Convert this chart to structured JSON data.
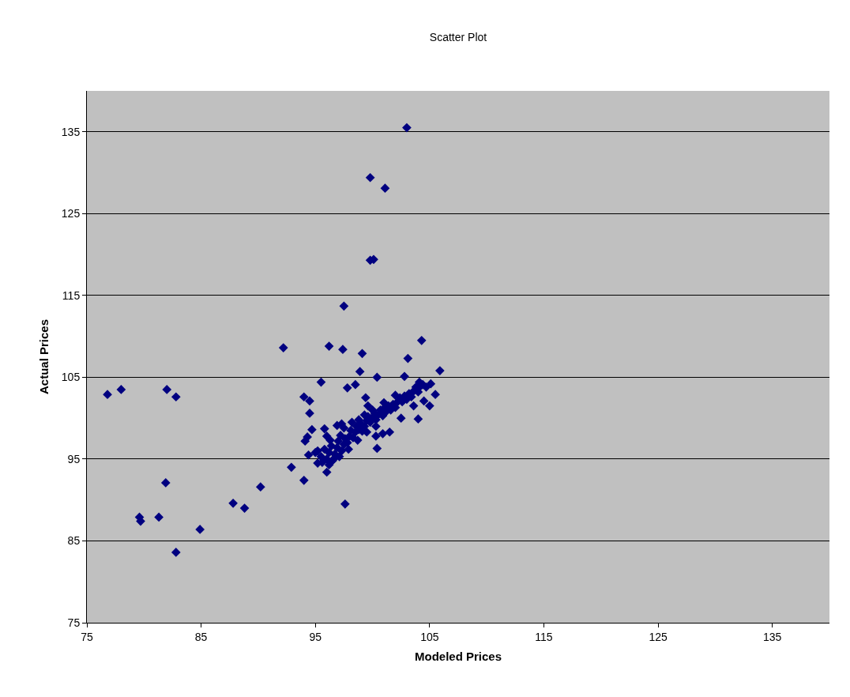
{
  "chart_data": {
    "type": "scatter",
    "title": "Scatter Plot",
    "xlabel": "Modeled Prices",
    "ylabel": "Actual Prices",
    "xlim": [
      75,
      140
    ],
    "xticks": [
      75,
      85,
      95,
      105,
      115,
      125,
      135
    ],
    "ylim": [
      75,
      140
    ],
    "yticks": [
      75,
      85,
      95,
      105,
      115,
      125,
      135
    ],
    "grid": "y",
    "marker": "diamond",
    "series": [
      {
        "color": "#000080",
        "x": [
          76.8,
          78.0,
          82.0,
          82.8,
          81.9,
          79.6,
          79.7,
          81.3,
          84.9,
          82.8,
          87.8,
          88.8,
          90.2,
          103.0,
          99.8,
          101.1,
          99.8,
          100.1,
          97.5,
          92.2,
          96.2,
          97.4,
          99.1,
          104.3,
          103.1,
          105.9,
          98.9,
          100.4,
          102.8,
          95.5,
          97.8,
          98.5,
          94.0,
          94.5,
          94.5,
          99.4,
          99.6,
          94.7,
          94.3,
          94.1,
          95.8,
          94.4,
          92.9,
          94.0,
          97.6,
          96.0,
          95.2,
          100.3,
          100.4,
          100.9,
          101.5,
          102.5,
          104.0,
          103.6,
          104.5,
          105.0,
          105.5,
          105.1,
          104.1,
          104.4,
          104.7,
          96.9,
          97.3,
          95.0,
          95.2,
          95.5,
          95.8,
          96.0,
          96.2,
          96.4,
          96.5,
          96.7,
          96.9,
          97.0,
          97.1,
          97.3,
          97.5,
          97.6,
          97.8,
          98.0,
          98.1,
          98.3,
          98.5,
          98.6,
          98.8,
          99.0,
          99.1,
          99.3,
          99.5,
          99.6,
          99.8,
          100.0,
          100.2,
          100.3,
          100.5,
          100.7,
          100.9,
          101.0,
          101.2,
          101.4,
          101.6,
          101.8,
          102.0,
          102.2,
          102.4,
          102.6,
          102.8,
          103.0,
          103.2,
          103.4,
          103.6,
          103.8,
          104.0,
          104.2,
          96.0,
          96.3,
          97.2,
          97.5,
          98.2,
          98.8,
          99.3,
          100.0,
          101.0,
          102.0,
          97.9,
          98.7,
          99.5,
          100.3,
          95.6,
          96.2,
          96.6
        ],
        "values": [
          102.9,
          103.5,
          103.5,
          102.6,
          92.1,
          87.9,
          87.4,
          87.9,
          86.4,
          83.6,
          89.6,
          89.0,
          91.6,
          135.5,
          129.4,
          128.1,
          119.3,
          119.4,
          113.7,
          108.6,
          108.8,
          108.4,
          107.9,
          109.5,
          107.3,
          105.8,
          105.7,
          105.0,
          105.1,
          104.4,
          103.7,
          104.1,
          102.6,
          102.1,
          100.6,
          102.5,
          101.5,
          98.6,
          97.7,
          97.2,
          98.7,
          95.5,
          94.0,
          92.4,
          89.5,
          93.4,
          94.5,
          97.8,
          96.3,
          98.1,
          98.3,
          100.0,
          99.9,
          101.5,
          102.1,
          101.5,
          102.9,
          104.2,
          104.4,
          104.1,
          103.8,
          99.1,
          99.3,
          95.8,
          96.0,
          95.3,
          96.2,
          95.0,
          95.8,
          96.6,
          94.8,
          95.6,
          96.4,
          97.2,
          95.3,
          96.0,
          96.8,
          97.5,
          97.0,
          97.8,
          98.5,
          97.6,
          98.3,
          99.0,
          98.6,
          99.3,
          98.4,
          99.0,
          99.7,
          100.2,
          99.5,
          100.1,
          100.6,
          99.8,
          100.4,
          101.0,
          100.3,
          101.2,
          100.8,
          101.5,
          101.0,
          101.7,
          101.3,
          102.0,
          102.5,
          102.0,
          102.7,
          102.3,
          103.0,
          102.6,
          103.3,
          103.8,
          103.2,
          103.9,
          97.8,
          97.3,
          97.9,
          98.8,
          99.5,
          99.8,
          100.4,
          101.0,
          101.9,
          102.8,
          96.2,
          97.3,
          98.3,
          99.0,
          94.6,
          94.3,
          95.0
        ]
      }
    ]
  }
}
